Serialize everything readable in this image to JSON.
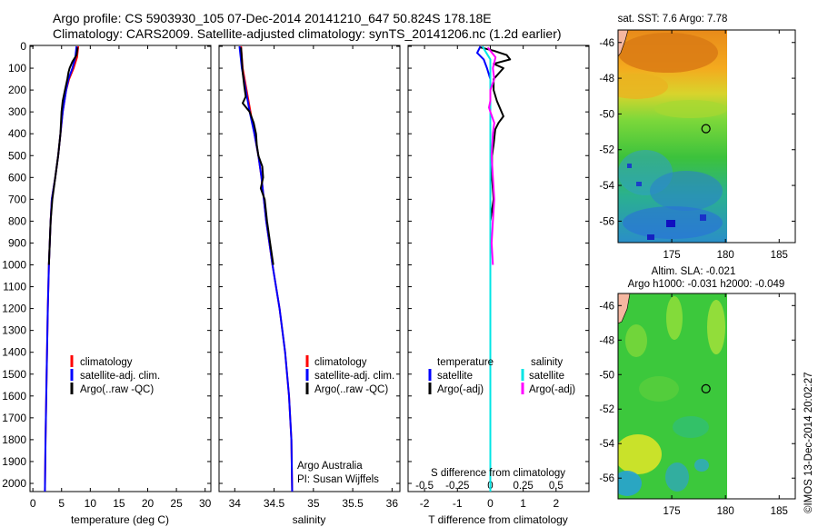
{
  "header": {
    "line1": "Argo profile: CS 5903930_105 07-Dec-2014 20141210_647 50.824S 178.18E",
    "line2": "Climatology: CARS2009. Satellite-adjusted climatology: synTS_20141206.nc (1.2d earlier)"
  },
  "credit": "©IMOS 13-Dec-2014 20:02:27",
  "colors": {
    "climatology": "#ff0000",
    "satellite": "#0000ff",
    "argo": "#000000",
    "salinity_satellite": "#00e5e5",
    "salinity_argo": "#ff00ff"
  },
  "chart_data": [
    {
      "type": "line",
      "id": "temperature",
      "xlabel": "temperature (deg C)",
      "xlim": [
        -0.5,
        31
      ],
      "xticks": [
        0,
        5,
        10,
        15,
        20,
        25,
        30
      ],
      "ylim": [
        2070,
        0
      ],
      "yticks": [
        0,
        100,
        200,
        300,
        400,
        500,
        600,
        700,
        800,
        900,
        1000,
        1100,
        1200,
        1300,
        1400,
        1500,
        1600,
        1700,
        1800,
        1900,
        2000
      ],
      "legend": [
        "climatology",
        "satellite-adj. clim.",
        "Argo(..raw -QC)"
      ],
      "series": [
        {
          "name": "climatology",
          "color": "#ff0000",
          "depth": [
            0,
            50,
            100,
            150,
            200,
            300,
            400,
            500,
            600,
            700,
            800,
            1000,
            1200,
            1500,
            1800,
            2050
          ],
          "values": [
            7.9,
            7.7,
            7.1,
            6.3,
            5.8,
            5.2,
            4.8,
            4.4,
            3.9,
            3.3,
            3.1,
            2.8,
            2.6,
            2.4,
            2.2,
            2.1
          ]
        },
        {
          "name": "satellite-adj. clim.",
          "color": "#0000ff",
          "depth": [
            0,
            50,
            100,
            150,
            200,
            300,
            400,
            500,
            600,
            700,
            800,
            1000,
            1200,
            1500,
            1800,
            2050
          ],
          "values": [
            7.6,
            7.4,
            6.9,
            6.2,
            5.8,
            5.2,
            4.8,
            4.4,
            3.9,
            3.3,
            3.1,
            2.8,
            2.6,
            2.4,
            2.2,
            2.1
          ]
        },
        {
          "name": "Argo(..raw -QC)",
          "color": "#000000",
          "depth": [
            5,
            40,
            70,
            100,
            120,
            150,
            200,
            250,
            300,
            350,
            400,
            500,
            600,
            700,
            800,
            1000
          ],
          "values": [
            7.8,
            7.6,
            6.9,
            6.4,
            6.2,
            6.0,
            5.6,
            5.2,
            5.0,
            4.9,
            4.8,
            4.4,
            3.9,
            3.4,
            3.1,
            2.8
          ]
        }
      ]
    },
    {
      "type": "line",
      "id": "salinity",
      "xlabel": "salinity",
      "xlim": [
        33.8,
        36.1
      ],
      "xticks": [
        34,
        34.5,
        35,
        35.5,
        36
      ],
      "ylim": [
        2070,
        0
      ],
      "legend": [
        "climatology",
        "satellite-adj. clim.",
        "Argo(..raw -QC)"
      ],
      "annotation": [
        "Argo Australia",
        "PI: Susan Wijffels"
      ],
      "series": [
        {
          "name": "climatology",
          "color": "#ff0000",
          "depth": [
            0,
            100,
            200,
            300,
            400,
            500,
            600,
            700,
            800,
            900,
            1000,
            1200,
            1400,
            1600,
            1800,
            2050
          ],
          "values": [
            34.08,
            34.1,
            34.15,
            34.2,
            34.25,
            34.3,
            34.34,
            34.37,
            34.4,
            34.44,
            34.48,
            34.57,
            34.64,
            34.69,
            34.72,
            34.73
          ]
        },
        {
          "name": "satellite-adj. clim.",
          "color": "#0000ff",
          "depth": [
            0,
            100,
            200,
            300,
            400,
            500,
            600,
            700,
            800,
            900,
            1000,
            1200,
            1400,
            1600,
            1800,
            2050
          ],
          "values": [
            34.06,
            34.09,
            34.14,
            34.19,
            34.25,
            34.3,
            34.34,
            34.37,
            34.4,
            34.44,
            34.48,
            34.57,
            34.64,
            34.69,
            34.72,
            34.73
          ]
        },
        {
          "name": "Argo(..raw -QC)",
          "color": "#000000",
          "depth": [
            5,
            60,
            120,
            180,
            230,
            260,
            300,
            350,
            400,
            450,
            500,
            550,
            600,
            650,
            700,
            800,
            900,
            1000
          ],
          "values": [
            34.08,
            34.09,
            34.1,
            34.12,
            34.14,
            34.1,
            34.19,
            34.24,
            34.27,
            34.28,
            34.3,
            34.35,
            34.36,
            34.33,
            34.38,
            34.41,
            34.45,
            34.49
          ]
        }
      ]
    },
    {
      "type": "line",
      "id": "difference",
      "xlabel": "T difference from climatology",
      "xlabel_top": "S difference from climatology",
      "xlim": [
        -2.5,
        3.0
      ],
      "xticks": [
        -2,
        -1,
        0,
        1,
        2
      ],
      "xticks_top": [
        -0.5,
        -0.25,
        0,
        0.25,
        0.5
      ],
      "legend": {
        "temperature_title": "temperature",
        "salinity_title": "salinity",
        "entries": [
          "satellite",
          "Argo(-adj)",
          "satellite",
          "Argo(-adj)"
        ]
      },
      "series": [
        {
          "name": "temperature satellite",
          "color": "#0000ff",
          "depth": [
            0,
            30,
            60,
            100,
            150,
            200,
            300,
            500,
            800,
            1200,
            2000
          ],
          "values": [
            -0.3,
            -0.4,
            -0.2,
            -0.1,
            0.0,
            0.0,
            0.0,
            0.0,
            0.0,
            0.0,
            0.0
          ]
        },
        {
          "name": "temperature Argo(-adj)",
          "color": "#000000",
          "depth": [
            5,
            20,
            40,
            60,
            80,
            100,
            150,
            200,
            250,
            320,
            350,
            380,
            450,
            500,
            600,
            700,
            800,
            900,
            1000
          ],
          "values": [
            -0.3,
            0.1,
            0.5,
            0.6,
            0.1,
            0.4,
            0.1,
            0.1,
            0.2,
            0.4,
            0.25,
            0.15,
            0.1,
            0.05,
            0.05,
            0.1,
            0.0,
            0.0,
            0.0
          ]
        },
        {
          "name": "salinity satellite",
          "color": "#00e5e5",
          "depth": [
            0,
            30,
            60,
            100,
            150,
            200,
            300,
            500,
            800,
            1200,
            1600,
            2050
          ],
          "values": [
            -0.06,
            -0.03,
            0.0,
            0.0,
            0.0,
            0.0,
            0.0,
            0.0,
            0.0,
            0.0,
            0.0,
            0.0
          ]
        },
        {
          "name": "salinity Argo(-adj)",
          "color": "#ff00ff",
          "depth": [
            5,
            50,
            100,
            150,
            200,
            250,
            280,
            300,
            350,
            400,
            500,
            600,
            700,
            800,
            900,
            1000
          ],
          "values": [
            -0.02,
            0.04,
            0.02,
            0.03,
            0.0,
            0.0,
            -0.01,
            0.0,
            0.03,
            0.02,
            0.01,
            0.02,
            0.03,
            0.02,
            0.01,
            0.02
          ]
        }
      ]
    },
    {
      "type": "heatmap",
      "id": "sst_map",
      "title": "sat. SST: 7.6 Argo: 7.78",
      "xticks": [
        175,
        180,
        185
      ],
      "yticks": [
        -46,
        -48,
        -50,
        -52,
        -54,
        -56
      ],
      "xlim": [
        170,
        186.5
      ],
      "ylim": [
        -57.2,
        -45.3
      ],
      "data_xlim": [
        170,
        180
      ],
      "marker": {
        "lon": 178.18,
        "lat": -50.824
      }
    },
    {
      "type": "heatmap",
      "id": "sla_map",
      "title": "Altim. SLA: -0.021",
      "title2": "Argo h1000: -0.031 h2000: -0.049",
      "xticks": [
        175,
        180,
        185
      ],
      "yticks": [
        -46,
        -48,
        -50,
        -52,
        -54,
        -56
      ],
      "xlim": [
        170,
        186.5
      ],
      "ylim": [
        -57.2,
        -45.3
      ],
      "data_xlim": [
        170,
        180
      ],
      "marker": {
        "lon": 178.18,
        "lat": -50.824
      }
    }
  ]
}
